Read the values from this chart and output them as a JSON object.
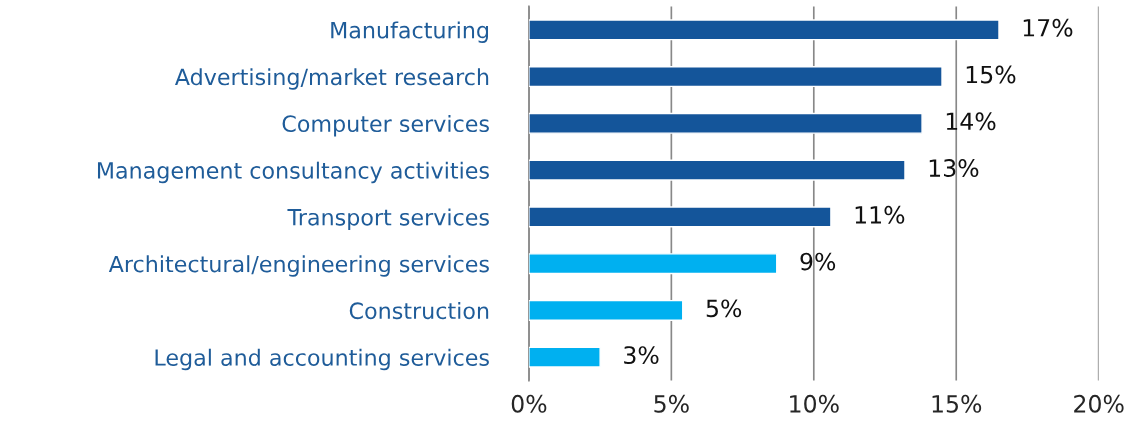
{
  "chart_data": {
    "type": "bar",
    "orientation": "horizontal",
    "categories": [
      "Manufacturing",
      "Advertising/market research",
      "Computer services",
      "Management consultancy activities",
      "Transport services",
      "Architectural/engineering services",
      "Construction",
      "Legal and accounting services"
    ],
    "values": [
      16.5,
      14.5,
      13.8,
      13.2,
      10.6,
      8.7,
      5.4,
      2.5
    ],
    "value_labels": [
      "17%",
      "15%",
      "14%",
      "13%",
      "11%",
      "9%",
      "5%",
      "3%"
    ],
    "colors": [
      "#14559a",
      "#14559a",
      "#14559a",
      "#14559a",
      "#14559a",
      "#00b0f0",
      "#00b0f0",
      "#00b0f0"
    ],
    "xlim": [
      0,
      20
    ],
    "xticks": [
      {
        "value": 0,
        "label": "0%"
      },
      {
        "value": 5,
        "label": "5%"
      },
      {
        "value": 10,
        "label": "10%"
      },
      {
        "value": 15,
        "label": "15%"
      },
      {
        "value": 20,
        "label": "20%"
      }
    ],
    "grid": "x"
  }
}
